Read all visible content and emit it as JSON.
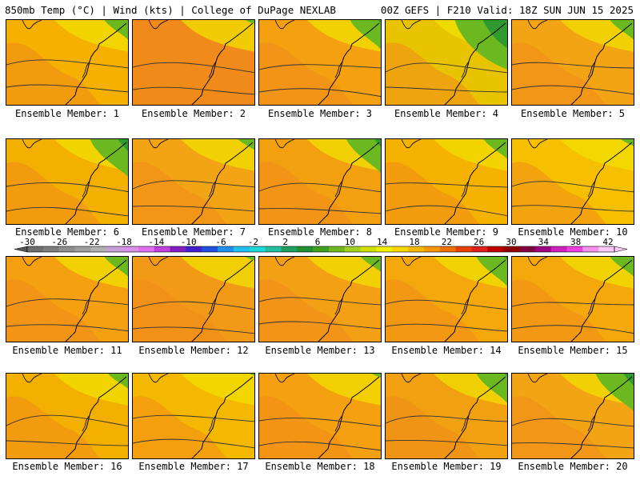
{
  "header": {
    "left": "850mb Temp (°C) | Wind (kts) | College of DuPage NEXLAB",
    "right": "00Z GEFS | F210 Valid: 18Z SUN JUN 15 2025"
  },
  "members": [
    {
      "label": "Ensemble Member: 1",
      "tint": "#f5b000",
      "green": 0.35
    },
    {
      "label": "Ensemble Member: 2",
      "tint": "#f08a1a",
      "green": 0.15
    },
    {
      "label": "Ensemble Member: 3",
      "tint": "#f4a010",
      "green": 0.45
    },
    {
      "label": "Ensemble Member: 4",
      "tint": "#e8c300",
      "green": 0.75
    },
    {
      "label": "Ensemble Member: 5",
      "tint": "#f3a414",
      "green": 0.35
    },
    {
      "label": "Ensemble Member: 6",
      "tint": "#f4b000",
      "green": 0.55
    },
    {
      "label": "Ensemble Member: 7",
      "tint": "#f3a414",
      "green": 0.25
    },
    {
      "label": "Ensemble Member: 8",
      "tint": "#f3a010",
      "green": 0.5
    },
    {
      "label": "Ensemble Member: 9",
      "tint": "#f5b300",
      "green": 0.35
    },
    {
      "label": "Ensemble Member: 10",
      "tint": "#f6c000",
      "green": 0.2
    },
    {
      "label": "Ensemble Member: 11",
      "tint": "#f4a010",
      "green": 0.35
    },
    {
      "label": "Ensemble Member: 12",
      "tint": "#f29a18",
      "green": 0.15
    },
    {
      "label": "Ensemble Member: 13",
      "tint": "#f3a014",
      "green": 0.3
    },
    {
      "label": "Ensemble Member: 14",
      "tint": "#f4a80c",
      "green": 0.45
    },
    {
      "label": "Ensemble Member: 15",
      "tint": "#f4a80c",
      "green": 0.35
    },
    {
      "label": "Ensemble Member: 16",
      "tint": "#f3b000",
      "green": 0.3
    },
    {
      "label": "Ensemble Member: 17",
      "tint": "#f5b800",
      "green": 0.1
    },
    {
      "label": "Ensemble Member: 18",
      "tint": "#f5a010",
      "green": 0.15
    },
    {
      "label": "Ensemble Member: 19",
      "tint": "#f0a010",
      "green": 0.45
    },
    {
      "label": "Ensemble Member: 20",
      "tint": "#f3a414",
      "green": 0.55
    }
  ],
  "colorbar": {
    "labels": [
      "-30",
      "-26",
      "-22",
      "-18",
      "-14",
      "-10",
      "-6",
      "-2",
      "2",
      "6",
      "10",
      "14",
      "18",
      "22",
      "26",
      "30",
      "34",
      "38",
      "42"
    ],
    "colors": [
      "#6e6e6e",
      "#7e7e7e",
      "#8e8e8e",
      "#9e9e9e",
      "#b0b0b0",
      "#c8a0d8",
      "#d890e8",
      "#e070f0",
      "#c040e0",
      "#8020c0",
      "#4020d0",
      "#2050e0",
      "#2090f0",
      "#20c0f0",
      "#20d8d8",
      "#20c0a0",
      "#20a060",
      "#209030",
      "#40a020",
      "#70b820",
      "#a0d020",
      "#d0e000",
      "#f0f000",
      "#f8d800",
      "#f8b800",
      "#f89800",
      "#f07000",
      "#e84000",
      "#e02020",
      "#c00000",
      "#900000",
      "#800040",
      "#a00080",
      "#d020c0",
      "#f040e0",
      "#f890f0",
      "#fcc8f8"
    ]
  }
}
